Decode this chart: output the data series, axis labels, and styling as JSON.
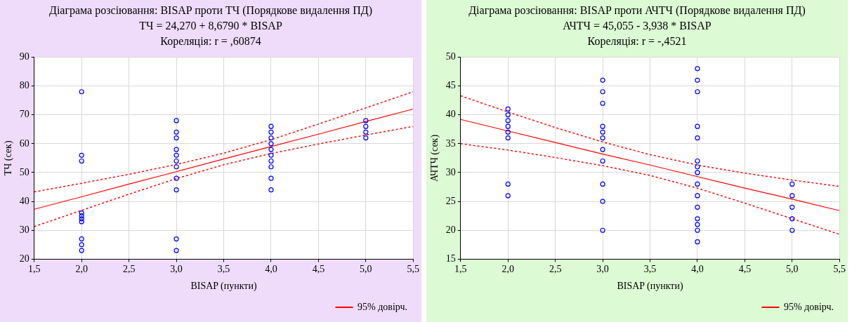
{
  "chart_data": [
    {
      "type": "scatter",
      "title": "Діаграма розсіювання: BISAP проти ТЧ (Порядкове видалення ПД)",
      "subtitle": "ТЧ = 24,270 + 8,6790 * BISAP",
      "annotations": [
        "Кореляція: r = ,60874"
      ],
      "xlabel": "BISAP (пункти)",
      "ylabel": "ТЧ (сек)",
      "xlim": [
        1.5,
        5.5
      ],
      "xticks": [
        {
          "value": 1.5,
          "label": "1,5"
        },
        {
          "value": 2,
          "label": "2,0"
        },
        {
          "value": 2.5,
          "label": "2,5"
        },
        {
          "value": 3,
          "label": "3,0"
        },
        {
          "value": 3.5,
          "label": "3,5"
        },
        {
          "value": 4,
          "label": "4,0"
        },
        {
          "value": 4.5,
          "label": "4,5"
        },
        {
          "value": 5,
          "label": "5,0"
        },
        {
          "value": 5.5,
          "label": "5,5"
        }
      ],
      "ylim": [
        20,
        90
      ],
      "yticks": [
        20,
        30,
        40,
        50,
        60,
        70,
        80,
        90
      ],
      "grid": true,
      "legend": "bottom right",
      "series": [
        {
          "color": "#0000ff",
          "marker": "circle",
          "x": [
            2,
            2,
            2,
            2,
            2,
            2,
            2,
            2,
            2,
            2,
            3,
            3,
            3,
            3,
            3,
            3,
            3,
            3,
            3,
            3,
            3,
            4,
            4,
            4,
            4,
            4,
            4,
            4,
            4,
            4,
            4,
            5,
            5,
            5,
            5
          ],
          "values": [
            78,
            56,
            54,
            36,
            35,
            34,
            33,
            27,
            25,
            23,
            68,
            64,
            62,
            58,
            56,
            54,
            52,
            48,
            44,
            27,
            23,
            66,
            64,
            62,
            60,
            58,
            56,
            54,
            52,
            48,
            44,
            68,
            66,
            64,
            62
          ]
        },
        {
          "type": "line",
          "name": "95% довірч.",
          "color": "#ff0000",
          "marker": "none",
          "x": [
            1.5,
            2,
            2.5,
            3,
            3.5,
            4,
            4.5,
            5,
            5.5
          ],
          "values": [
            37.3,
            41.6,
            46.0,
            50.3,
            54.7,
            59.0,
            63.3,
            67.7,
            72.0
          ]
        },
        {
          "type": "line",
          "color": "#ff0000",
          "marker": "none",
          "line_style": "dotted",
          "x": [
            1.5,
            2,
            2.5,
            3,
            3.5,
            4,
            4.5,
            5,
            5.5
          ],
          "values": [
            43.3,
            46.3,
            49.4,
            52.8,
            56.7,
            61.4,
            66.8,
            72.4,
            78.0
          ]
        },
        {
          "type": "line",
          "color": "#ff0000",
          "marker": "none",
          "line_style": "dotted",
          "x": [
            1.5,
            2,
            2.5,
            3,
            3.5,
            4,
            4.5,
            5,
            5.5
          ],
          "values": [
            31.3,
            36.9,
            42.5,
            47.9,
            52.7,
            56.6,
            59.9,
            63.0,
            66.0
          ]
        }
      ]
    },
    {
      "type": "scatter",
      "title": "Діаграма розсіювання: BISAP проти АЧТЧ (Порядкове видалення ПД)",
      "subtitle": "АЧТЧ = 45,055 - 3,938 * BISAP",
      "annotations": [
        "Кореляція: r = -,4521"
      ],
      "xlabel": "BISAP (пункти)",
      "ylabel": "АЧТЧ (сек)",
      "xlim": [
        1.5,
        5.5
      ],
      "xticks": [
        {
          "value": 1.5,
          "label": "1,5"
        },
        {
          "value": 2,
          "label": "2,0"
        },
        {
          "value": 2.5,
          "label": "2,5"
        },
        {
          "value": 3,
          "label": "3,0"
        },
        {
          "value": 3.5,
          "label": "3,5"
        },
        {
          "value": 4,
          "label": "4,0"
        },
        {
          "value": 4.5,
          "label": "4,5"
        },
        {
          "value": 5,
          "label": "5,0"
        },
        {
          "value": 5.5,
          "label": "5,5"
        }
      ],
      "ylim": [
        15,
        50
      ],
      "yticks": [
        15,
        20,
        25,
        30,
        35,
        40,
        45,
        50
      ],
      "grid": true,
      "legend": "bottom right",
      "series": [
        {
          "color": "#0000ff",
          "marker": "circle",
          "x": [
            2,
            2,
            2,
            2,
            2,
            2,
            2,
            2,
            3,
            3,
            3,
            3,
            3,
            3,
            3,
            3,
            3,
            3,
            3,
            4,
            4,
            4,
            4,
            4,
            4,
            4,
            4,
            4,
            4,
            4,
            4,
            4,
            4,
            4,
            5,
            5,
            5,
            5,
            5
          ],
          "values": [
            41,
            40,
            39,
            38,
            37,
            36,
            28,
            26,
            46,
            44,
            42,
            38,
            37,
            36,
            34,
            32,
            28,
            25,
            20,
            48,
            46,
            44,
            38,
            36,
            32,
            31,
            30,
            28,
            26,
            24,
            22,
            21,
            20,
            18,
            28,
            26,
            24,
            22,
            20
          ]
        },
        {
          "type": "line",
          "name": "95% довірч.",
          "color": "#ff0000",
          "marker": "none",
          "x": [
            1.5,
            2,
            2.5,
            3,
            3.5,
            4,
            4.5,
            5,
            5.5
          ],
          "values": [
            39.2,
            37.2,
            35.2,
            33.2,
            31.3,
            29.3,
            27.3,
            25.4,
            23.4
          ]
        },
        {
          "type": "line",
          "color": "#ff0000",
          "marker": "none",
          "line_style": "dotted",
          "x": [
            1.5,
            2,
            2.5,
            3,
            3.5,
            4,
            4.5,
            5,
            5.5
          ],
          "values": [
            43.3,
            40.5,
            37.8,
            35.3,
            33.1,
            31.3,
            29.9,
            28.7,
            27.6
          ]
        },
        {
          "type": "line",
          "color": "#ff0000",
          "marker": "none",
          "line_style": "dotted",
          "x": [
            1.5,
            2,
            2.5,
            3,
            3.5,
            4,
            4.5,
            5,
            5.5
          ],
          "values": [
            35.0,
            33.9,
            32.6,
            31.2,
            29.5,
            27.3,
            24.7,
            22.0,
            19.3
          ]
        }
      ]
    }
  ]
}
